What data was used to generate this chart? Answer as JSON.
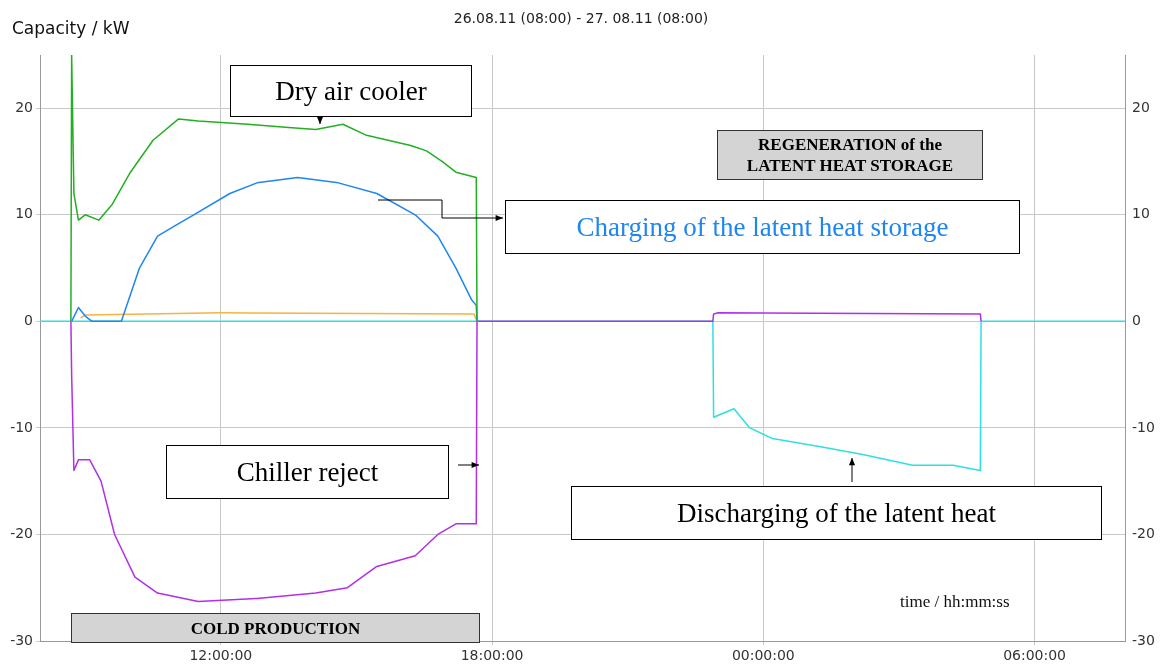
{
  "chart_data": {
    "type": "line",
    "title": "26.08.11 (08:00) - 27. 08.11 (08:00)",
    "xlabel": "time / hh:mm:ss",
    "ylabel": "Capacity / kW",
    "xlim": [
      "--08-26T08:00",
      "--08-27T08:00"
    ],
    "xticks": [
      {
        "value": "--08-26T12:00",
        "label": "12:00:00"
      },
      {
        "value": "--08-26T18:00",
        "label": "18:00:00"
      },
      {
        "value": "--08-27T00:00",
        "label": "00:00:00"
      },
      {
        "value": "--08-27T06:00",
        "label": "06:00:00"
      }
    ],
    "ylim": [
      -30,
      25
    ],
    "yticks": [
      -30,
      -20,
      -10,
      0,
      10,
      20
    ],
    "y2lim": [
      -30,
      25
    ],
    "y2ticks": [
      -30,
      -20,
      -10,
      0,
      10,
      20
    ],
    "grid": true,
    "legend": false,
    "marker": "none",
    "line_style": "solid",
    "series": [
      {
        "name": "Dry air cooler",
        "color": "#22b022",
        "x": [
          "--08-26T08:41",
          "--08-26T08:42",
          "--08-26T08:45",
          "--08-26T08:51",
          "--08-26T09:00",
          "--08-26T09:18",
          "--08-26T09:36",
          "--08-26T10:00",
          "--08-26T10:30",
          "--08-26T11:04",
          "--08-26T11:30",
          "--08-26T12:36",
          "--08-26T13:30",
          "--08-26T14:06",
          "--08-26T14:42",
          "--08-26T15:12",
          "--08-26T15:42",
          "--08-26T16:12",
          "--08-26T16:33",
          "--08-26T16:54",
          "--08-26T17:12",
          "--08-26T17:39",
          "--08-26T17:40"
        ],
        "values": [
          0,
          25,
          12,
          9.5,
          10,
          9.5,
          11,
          14,
          17,
          19,
          18.8,
          18.5,
          18.2,
          18,
          18.5,
          17.5,
          17,
          16.5,
          16,
          15,
          14,
          13.5,
          0
        ]
      },
      {
        "name": "Charging of the latent heat storage",
        "color": "#1e86f0",
        "x": [
          "--08-26T08:42",
          "--08-26T08:51",
          "--08-26T09:00",
          "--08-26T09:09",
          "--08-26T09:48",
          "--08-26T10:12",
          "--08-26T10:36",
          "--08-26T11:00",
          "--08-26T11:24",
          "--08-26T12:12",
          "--08-26T12:48",
          "--08-26T13:42",
          "--08-26T14:36",
          "--08-26T15:27",
          "--08-26T16:18",
          "--08-26T16:48",
          "--08-26T17:12",
          "--08-26T17:33",
          "--08-26T17:39",
          "--08-26T17:40"
        ],
        "values": [
          0,
          1.3,
          0.5,
          0,
          0,
          5,
          8,
          9,
          10,
          12,
          13,
          13.5,
          13,
          12,
          10,
          8,
          5,
          2,
          1.5,
          0
        ]
      },
      {
        "color": "#f5b342",
        "x": [
          "--08-26T08:54",
          "--08-26T09:00",
          "--08-26T12:00",
          "--08-26T17:36",
          "--08-26T17:40"
        ],
        "values": [
          0.3,
          0.6,
          0.8,
          0.7,
          0
        ]
      },
      {
        "name": "Chiller reject",
        "color": "#b030e8",
        "x": [
          "--08-26T08:41",
          "--08-26T08:42",
          "--08-26T08:45",
          "--08-26T08:51",
          "--08-26T09:06",
          "--08-26T09:21",
          "--08-26T09:39",
          "--08-26T10:06",
          "--08-26T10:36",
          "--08-26T11:30",
          "--08-26T12:48",
          "--08-26T14:06",
          "--08-26T14:48",
          "--08-26T15:27",
          "--08-26T16:18",
          "--08-26T16:48",
          "--08-26T17:12",
          "--08-26T17:39",
          "--08-26T17:40",
          "--08-26T22:53",
          "--08-26T22:54",
          "--08-26T23:00",
          "--08-27T04:48",
          "--08-27T04:49"
        ],
        "values": [
          0,
          -5,
          -14,
          -13,
          -13,
          -15,
          -20,
          -24,
          -25.5,
          -26.3,
          -26,
          -25.5,
          -25,
          -23,
          -22,
          -20,
          -19,
          -19,
          0,
          0,
          0.7,
          0.8,
          0.7,
          0
        ]
      },
      {
        "name": "Discharging of the latent heat",
        "color": "#2ee0e0",
        "x": [
          "--08-26T08:00",
          "--08-26T08:41",
          "--08-26T08:42",
          "--08-26T08:43",
          "--08-26T22:53",
          "--08-26T22:54",
          "--08-26T23:21",
          "--08-26T23:42",
          "--08-27T00:12",
          "--08-27T01:18",
          "--08-27T02:12",
          "--08-27T03:18",
          "--08-27T04:12",
          "--08-27T04:48",
          "--08-27T04:49",
          "--08-27T08:00"
        ],
        "values": [
          0,
          0,
          null,
          0,
          0,
          -9,
          -8.2,
          -10,
          -11,
          -11.8,
          -12.5,
          -13.5,
          -13.5,
          -14,
          0,
          0
        ]
      }
    ],
    "annotations": [
      "REGENERATION of the LATENT HEAT STORAGE",
      "COLD PRODUCTION"
    ]
  }
}
